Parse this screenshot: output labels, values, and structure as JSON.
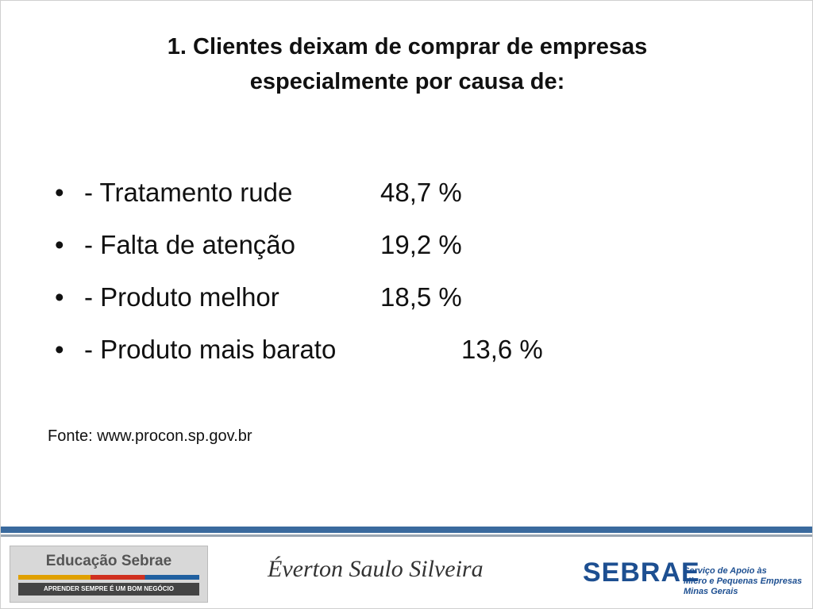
{
  "header": {
    "title_line1": "1. Clientes deixam de comprar de empresas",
    "title_line2": "especialmente por causa de:"
  },
  "items": [
    {
      "bullet": "•",
      "label": "- Tratamento rude",
      "value": "48,7 %"
    },
    {
      "bullet": "•",
      "label": "- Falta de atenção",
      "value": "19,2 %"
    },
    {
      "bullet": "•",
      "label": "- Produto melhor",
      "value": "18,5 %"
    },
    {
      "bullet": "•",
      "label": "- Produto mais barato",
      "value": "13,6 %"
    }
  ],
  "source": "Fonte: www.procon.sp.gov.br",
  "footer": {
    "logo_left_title": "Educação Sebrae",
    "logo_left_slogan": "APRENDER SEMPRE É UM BOM NEGÓCIO",
    "signature": "Éverton Saulo Silveira",
    "logo_right_name": "SEBRAE",
    "logo_right_sub": [
      "Serviço de Apoio às",
      "Micro e Pequenas Empresas",
      "Minas Gerais"
    ]
  }
}
